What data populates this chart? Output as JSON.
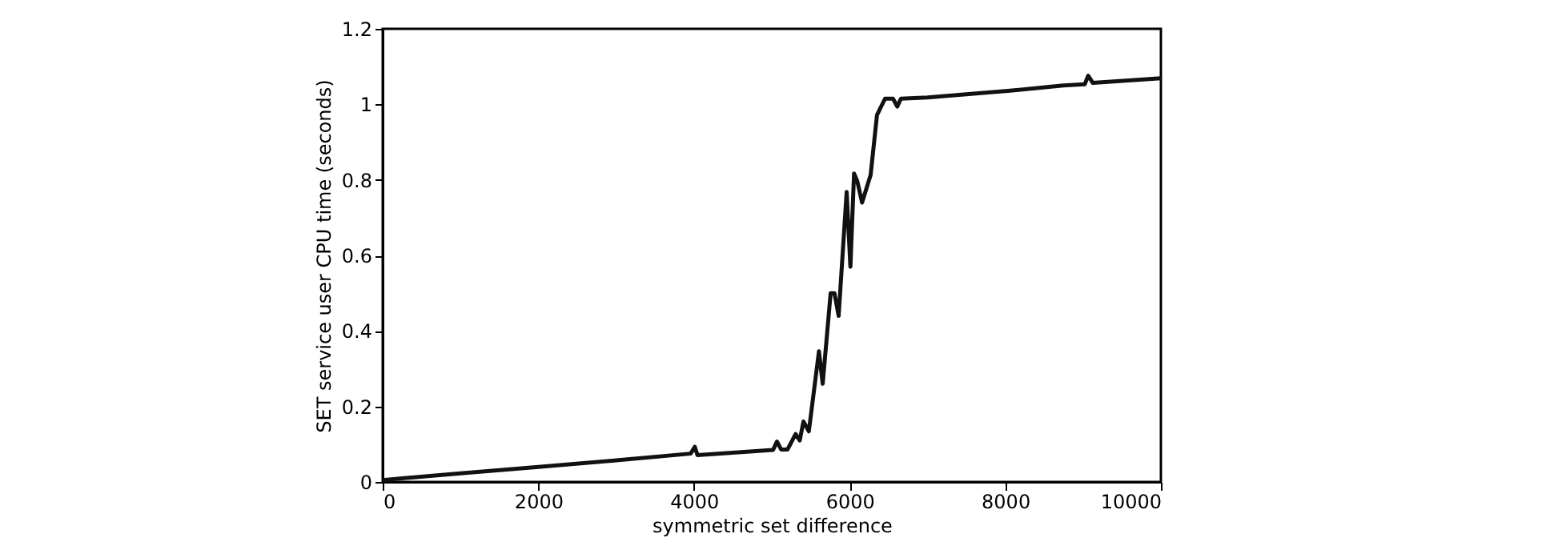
{
  "chart_data": {
    "type": "line",
    "xlabel": "symmetric set difference",
    "ylabel": "SET service user CPU time (seconds)",
    "x": [
      0,
      1000,
      2000,
      3000,
      3957,
      4011,
      4045,
      5017,
      5066,
      5120,
      5203,
      5306,
      5359,
      5407,
      5476,
      5606,
      5654,
      5756,
      5805,
      5859,
      5962,
      6010,
      6057,
      6099,
      6160,
      6270,
      6352,
      6455,
      6558,
      6612,
      6659,
      7000,
      8063,
      8747,
      9021,
      9066,
      9124,
      10000
    ],
    "series": [
      {
        "color": "#111111",
        "values": [
          0.005,
          0.023,
          0.04,
          0.057,
          0.075,
          0.093,
          0.071,
          0.085,
          0.107,
          0.086,
          0.086,
          0.127,
          0.11,
          0.16,
          0.134,
          0.346,
          0.26,
          0.5,
          0.5,
          0.44,
          0.768,
          0.57,
          0.817,
          0.796,
          0.74,
          0.813,
          0.972,
          1.015,
          1.015,
          0.994,
          1.015,
          1.018,
          1.036,
          1.05,
          1.053,
          1.076,
          1.057,
          1.069
        ]
      }
    ],
    "xlim": [
      0,
      10000
    ],
    "xticks": [
      0,
      2000,
      4000,
      6000,
      8000,
      10000
    ],
    "ylim": [
      0,
      1.2
    ],
    "yticks": [
      0,
      0.2,
      0.4,
      0.6,
      0.8,
      1,
      1.2
    ],
    "marker": "none",
    "line_style": "solid",
    "grid": false
  }
}
